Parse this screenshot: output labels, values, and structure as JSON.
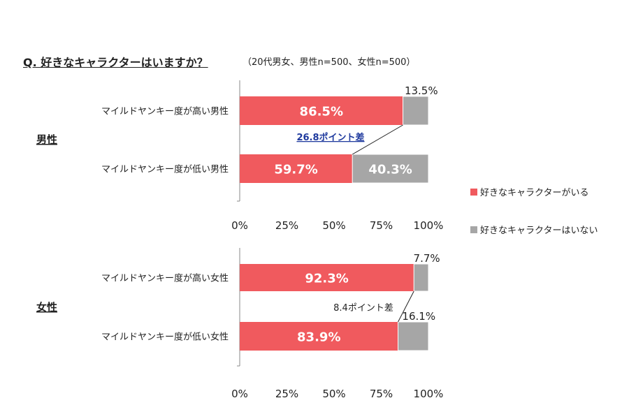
{
  "title": "Q. 好きなキャラクターはいますか？",
  "subtitle": "（20代男女、男性n=500、女性n=500）",
  "legend": [
    "好きなキャラクターがいる",
    "好きなキャラクターはいない"
  ],
  "colors": {
    "like": "#f05a5e",
    "dislike": "#a6a6a6"
  },
  "chart_data": [
    {
      "type": "bar",
      "orientation": "horizontal",
      "stacked": true,
      "group_label": "男性",
      "categories": [
        "マイルドヤンキー度が高い男性",
        "マイルドヤンキー度が低い男性"
      ],
      "series": [
        {
          "name": "好きなキャラクターがいる",
          "values": [
            86.5,
            59.7
          ]
        },
        {
          "name": "好きなキャラクターはいない",
          "values": [
            13.5,
            40.3
          ]
        }
      ],
      "data_labels": [
        [
          "86.5%",
          "59.7%"
        ],
        [
          "13.5%",
          "40.3%"
        ]
      ],
      "xlim": [
        0,
        100
      ],
      "x_ticks": [
        "0%",
        "25%",
        "50%",
        "75%",
        "100%"
      ],
      "annotation": "26.8ポイント差",
      "legend_position": "right"
    },
    {
      "type": "bar",
      "orientation": "horizontal",
      "stacked": true,
      "group_label": "女性",
      "categories": [
        "マイルドヤンキー度が高い女性",
        "マイルドヤンキー度が低い女性"
      ],
      "series": [
        {
          "name": "好きなキャラクターがいる",
          "values": [
            92.3,
            83.9
          ]
        },
        {
          "name": "好きなキャラクターはいない",
          "values": [
            7.7,
            16.1
          ]
        }
      ],
      "data_labels": [
        [
          "92.3%",
          "83.9%"
        ],
        [
          "7.7%",
          "16.1%"
        ]
      ],
      "xlim": [
        0,
        100
      ],
      "x_ticks": [
        "0%",
        "25%",
        "50%",
        "75%",
        "100%"
      ],
      "annotation": "8.4ポイント差",
      "legend_position": "right"
    }
  ]
}
